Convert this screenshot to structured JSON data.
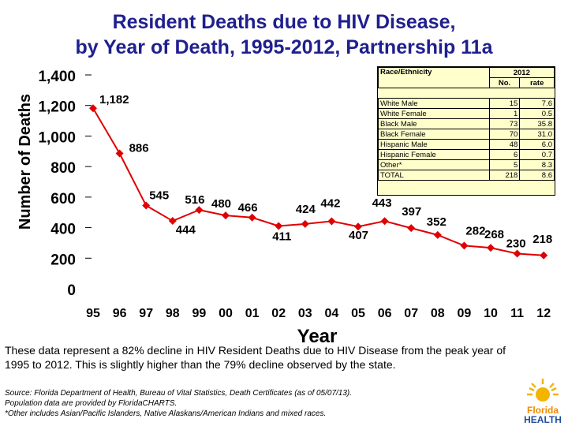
{
  "chart_data": {
    "type": "line",
    "title": "Resident Deaths due to HIV Disease, by Year of Death, 1995-2012, Partnership 11a",
    "title_lines": [
      "Resident Deaths due to HIV Disease,",
      "by Year of Death, 1995-2012, Partnership 11a"
    ],
    "xlabel": "Year",
    "ylabel": "Number of Deaths",
    "categories": [
      "95",
      "96",
      "97",
      "98",
      "99",
      "00",
      "01",
      "02",
      "03",
      "04",
      "05",
      "06",
      "07",
      "08",
      "09",
      "10",
      "11",
      "12"
    ],
    "values": [
      1182,
      886,
      545,
      444,
      516,
      480,
      466,
      411,
      424,
      442,
      407,
      443,
      397,
      352,
      282,
      268,
      230,
      218
    ],
    "data_labels": [
      "1,182",
      "886",
      "545",
      "444",
      "516",
      "480",
      "466",
      "411",
      "424",
      "442",
      "407",
      "443",
      "397",
      "352",
      "282",
      "268",
      "230",
      "218"
    ],
    "ylim": [
      0,
      1400
    ],
    "yticks": [
      0,
      200,
      400,
      600,
      800,
      1000,
      1200,
      1400
    ],
    "ytick_labels": [
      "0",
      "200",
      "400",
      "600",
      "800",
      "1,000",
      "1,200",
      "1,400"
    ],
    "series_color": "#e00000",
    "grid": false
  },
  "legend_table": {
    "header_col": "Race/Ethnicity",
    "year": "2012",
    "col_no": "No.",
    "col_rate": "rate",
    "rows": [
      {
        "label": "White Male",
        "no": "15",
        "rate": "7.6"
      },
      {
        "label": "White Female",
        "no": "1",
        "rate": "0.5"
      },
      {
        "label": "Black Male",
        "no": "73",
        "rate": "35.8"
      },
      {
        "label": "Black Female",
        "no": "70",
        "rate": "31.0"
      },
      {
        "label": "Hispanic Male",
        "no": "48",
        "rate": "6.0"
      },
      {
        "label": "Hispanic Female",
        "no": "6",
        "rate": "0.7"
      },
      {
        "label": "Other*",
        "no": "5",
        "rate": "8.3"
      },
      {
        "label": "TOTAL",
        "no": "218",
        "rate": "8.6"
      }
    ]
  },
  "note": "These data represent a 82% decline in HIV Resident Deaths due to HIV Disease from the peak year of 1995 to 2012.  This is slightly higher than the 79% decline observed by the state.",
  "source_lines": [
    "Source:  Florida Department of Health, Bureau of Vital Statistics, Death Certificates (as of 05/07/13).",
    "Population data are provided by FloridaCHARTS.",
    "*Other includes Asian/Pacific Islanders, Native Alaskans/American Indians and mixed races."
  ],
  "logo": {
    "line1": "Florida",
    "line2": "HEALTH"
  }
}
